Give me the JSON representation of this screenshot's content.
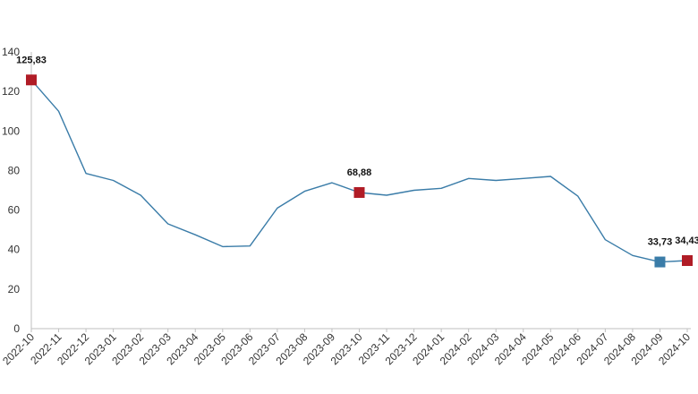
{
  "chart_data": {
    "type": "line",
    "title": "",
    "xlabel": "",
    "ylabel": "",
    "ylim": [
      0,
      140
    ],
    "yticks": [
      0,
      20,
      40,
      60,
      80,
      100,
      120,
      140
    ],
    "grid": false,
    "legend": "none",
    "categories": [
      "2022-10",
      "2022-11",
      "2022-12",
      "2023-01",
      "2023-02",
      "2023-03",
      "2023-04",
      "2023-05",
      "2023-06",
      "2023-07",
      "2023-08",
      "2023-09",
      "2023-10",
      "2023-11",
      "2023-12",
      "2024-01",
      "2024-02",
      "2024-03",
      "2024-04",
      "2024-05",
      "2024-06",
      "2024-07",
      "2024-08",
      "2024-09",
      "2024-10"
    ],
    "series": [
      {
        "values": [
          125.83,
          110,
          78.5,
          75,
          67.5,
          53,
          47.5,
          41.5,
          41.8,
          61,
          69.5,
          73.8,
          68.88,
          67.5,
          70,
          71,
          76,
          75,
          76,
          77,
          67,
          45,
          37,
          33.73,
          34.43
        ],
        "color": "#3a7ca8"
      }
    ],
    "annotations": [
      {
        "index": 0,
        "label": "125,83",
        "marker_color": "#b01c26"
      },
      {
        "index": 12,
        "label": "68,88",
        "marker_color": "#b01c26"
      },
      {
        "index": 23,
        "label": "33,73",
        "marker_color": "#3a7ca8"
      },
      {
        "index": 24,
        "label": "34,43",
        "marker_color": "#b01c26"
      }
    ]
  }
}
